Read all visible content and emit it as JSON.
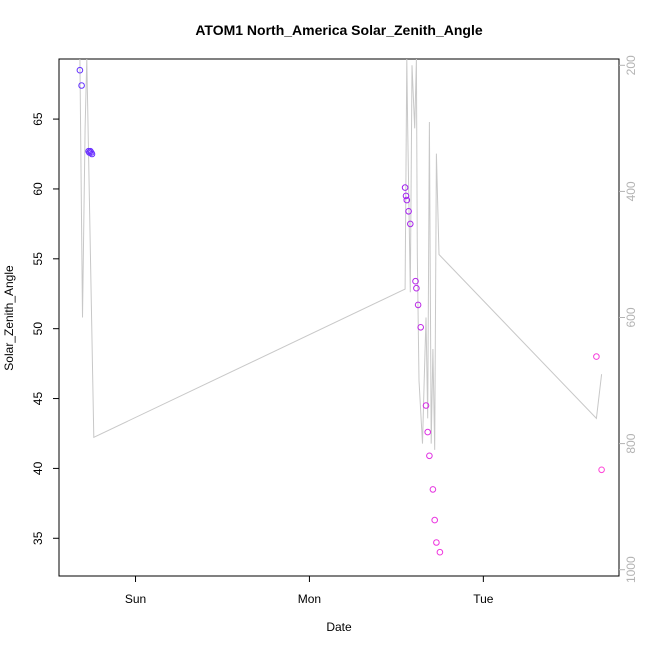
{
  "chart_data": {
    "type": "scatter",
    "title": "ATOM1 North_America Solar_Zenith_Angle",
    "xlabel": "Date",
    "ylabel": "Solar_Zenith_Angle",
    "x_ticks": [
      {
        "label": "Sun",
        "value": 0
      },
      {
        "label": "Mon",
        "value": 1
      },
      {
        "label": "Tue",
        "value": 2
      }
    ],
    "xlim": [
      -0.44,
      2.78
    ],
    "ylim": [
      32.3,
      69.3
    ],
    "y_ticks": [
      35,
      40,
      45,
      50,
      55,
      60,
      65
    ],
    "secondary_axis": {
      "ylim": [
        1010,
        190
      ],
      "ticks": [
        200,
        400,
        600,
        800,
        1000
      ],
      "color": "#b3b3b3"
    },
    "points": [
      {
        "x": -0.32,
        "y": 68.5,
        "color": "#6633ff"
      },
      {
        "x": -0.31,
        "y": 67.4,
        "color": "#6633ff"
      },
      {
        "x": -0.27,
        "y": 62.7,
        "color": "#6a30ff"
      },
      {
        "x": -0.265,
        "y": 62.6,
        "color": "#6a30ff"
      },
      {
        "x": -0.26,
        "y": 62.7,
        "color": "#6a30ff"
      },
      {
        "x": -0.255,
        "y": 62.6,
        "color": "#6a30ff"
      },
      {
        "x": -0.25,
        "y": 62.5,
        "color": "#6a30ff"
      },
      {
        "x": 1.55,
        "y": 60.1,
        "color": "#a020f0"
      },
      {
        "x": 1.555,
        "y": 59.5,
        "color": "#a020f0"
      },
      {
        "x": 1.56,
        "y": 59.2,
        "color": "#a321ee"
      },
      {
        "x": 1.57,
        "y": 58.4,
        "color": "#a522ee"
      },
      {
        "x": 1.58,
        "y": 57.5,
        "color": "#a823ec"
      },
      {
        "x": 1.61,
        "y": 53.4,
        "color": "#b525ea"
      },
      {
        "x": 1.615,
        "y": 52.9,
        "color": "#b826ea"
      },
      {
        "x": 1.625,
        "y": 51.7,
        "color": "#bb27e8"
      },
      {
        "x": 1.64,
        "y": 50.1,
        "color": "#c028e6"
      },
      {
        "x": 1.67,
        "y": 44.5,
        "color": "#d52ce4"
      },
      {
        "x": 1.68,
        "y": 42.6,
        "color": "#dc2ee2"
      },
      {
        "x": 1.69,
        "y": 40.9,
        "color": "#e030e2"
      },
      {
        "x": 1.71,
        "y": 38.5,
        "color": "#e532e0"
      },
      {
        "x": 1.72,
        "y": 36.3,
        "color": "#ea33e0"
      },
      {
        "x": 1.73,
        "y": 34.7,
        "color": "#ee35de"
      },
      {
        "x": 1.75,
        "y": 34.0,
        "color": "#f036de"
      },
      {
        "x": 2.65,
        "y": 48.0,
        "color": "#f53ddc"
      },
      {
        "x": 2.68,
        "y": 39.9,
        "color": "#ff44d8"
      }
    ],
    "secondary_line": {
      "color": "#c8c8c8",
      "x": [
        -0.32,
        -0.305,
        -0.29,
        -0.28,
        -0.24,
        1.55,
        1.56,
        1.565,
        1.58,
        1.59,
        1.605,
        1.615,
        1.62,
        1.63,
        1.65,
        1.66,
        1.67,
        1.68,
        1.69,
        1.7,
        1.71,
        1.72,
        1.73,
        1.745,
        2.65,
        2.68
      ],
      "y": [
        190,
        600,
        300,
        190,
        790,
        555,
        190,
        300,
        560,
        200,
        300,
        190,
        500,
        700,
        800,
        700,
        600,
        760,
        290,
        800,
        650,
        810,
        340,
        500,
        760,
        690
      ]
    }
  }
}
